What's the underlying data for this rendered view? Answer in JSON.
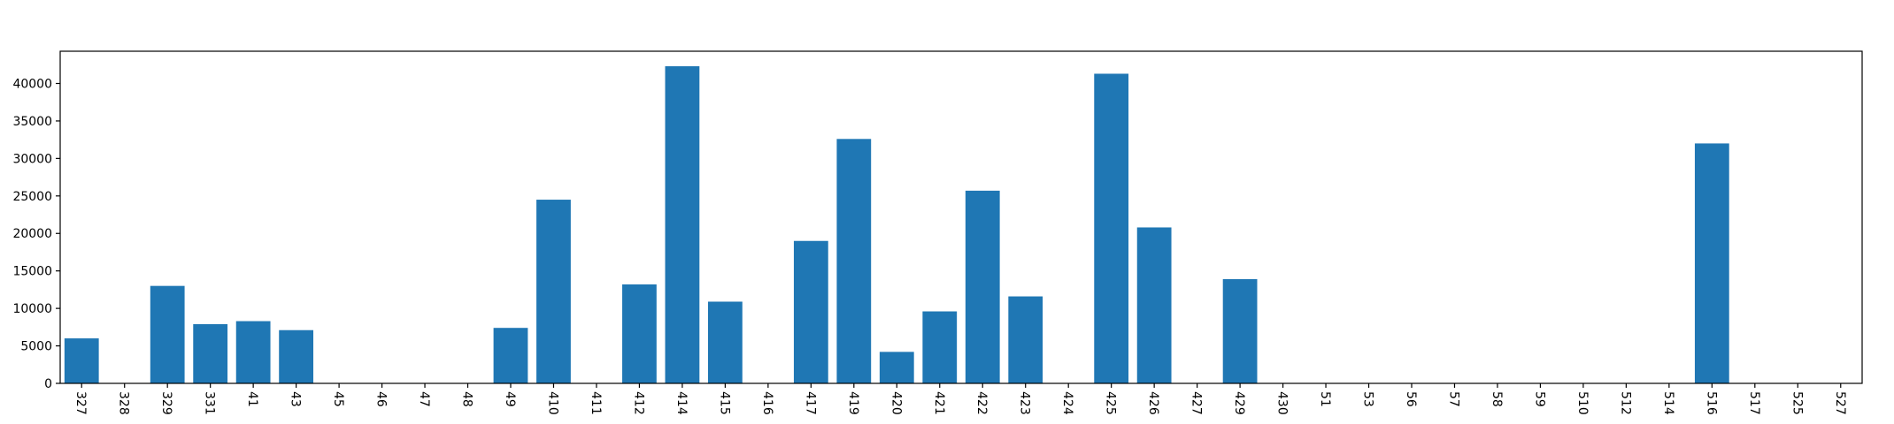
{
  "chart_data": {
    "type": "bar",
    "title": "",
    "xlabel": "",
    "ylabel": "",
    "categories": [
      "327",
      "328",
      "329",
      "331",
      "41",
      "43",
      "45",
      "46",
      "47",
      "48",
      "49",
      "410",
      "411",
      "412",
      "414",
      "415",
      "416",
      "417",
      "419",
      "420",
      "421",
      "422",
      "423",
      "424",
      "425",
      "426",
      "427",
      "429",
      "430",
      "51",
      "53",
      "56",
      "57",
      "58",
      "59",
      "510",
      "512",
      "514",
      "516",
      "517",
      "525",
      "527"
    ],
    "values": [
      6000,
      0,
      13000,
      7900,
      8300,
      7100,
      0,
      0,
      0,
      0,
      7400,
      24500,
      0,
      13200,
      42300,
      10900,
      0,
      19000,
      32600,
      4200,
      9600,
      25700,
      11600,
      0,
      41300,
      20800,
      0,
      13900,
      0,
      0,
      0,
      0,
      0,
      0,
      0,
      0,
      0,
      0,
      32000,
      0,
      0,
      0
    ],
    "ylim": [
      0,
      44300
    ],
    "yticks": [
      0,
      5000,
      10000,
      15000,
      20000,
      25000,
      30000,
      35000,
      40000
    ],
    "bar_color": "#1f77b4",
    "grid": false,
    "legend": "none",
    "xtick_rotation": "vertical"
  }
}
